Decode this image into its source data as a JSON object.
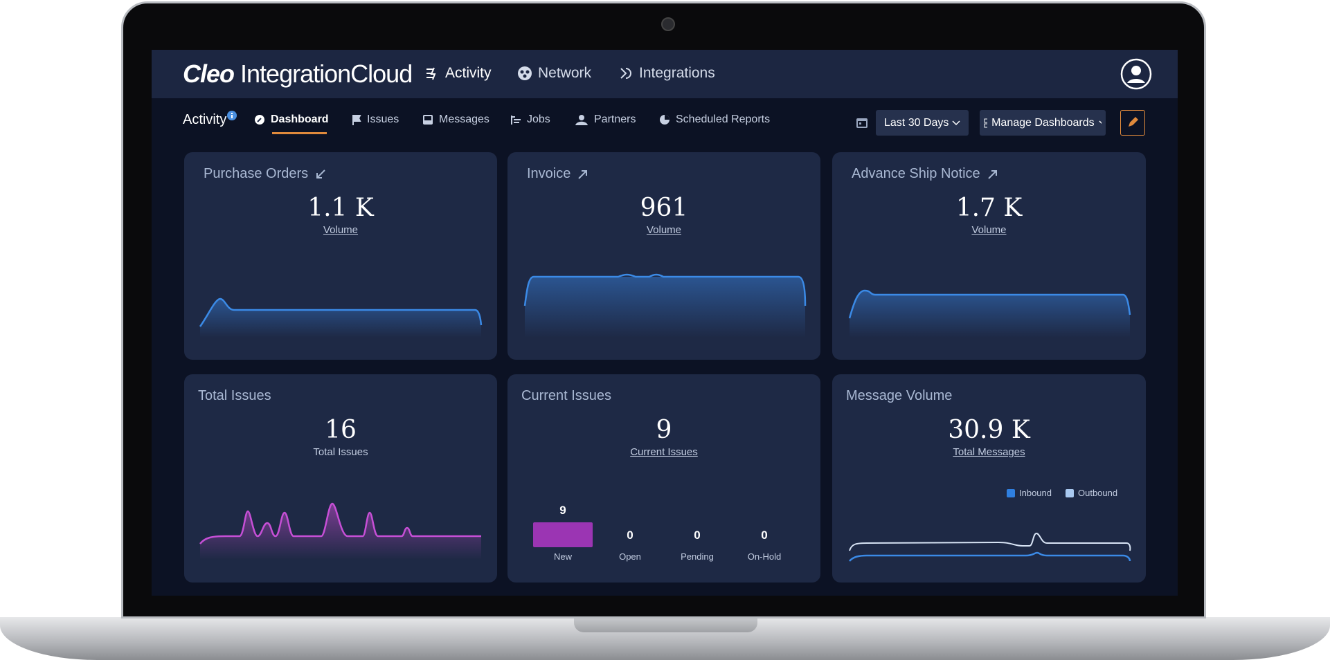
{
  "header": {
    "logo_bold": "Cleo",
    "logo_rest": "IntegrationCloud",
    "nav": [
      "Activity",
      "Network",
      "Integrations"
    ]
  },
  "subnav": {
    "section": "Activity",
    "tabs": [
      "Dashboard",
      "Issues",
      "Messages",
      "Jobs",
      "Partners",
      "Scheduled Reports"
    ],
    "date_range": "Last 30 Days",
    "manage": "Manage Dashboards"
  },
  "cards": [
    {
      "title": "Purchase Orders",
      "value": "1.1 K",
      "label": "Volume"
    },
    {
      "title": "Invoice",
      "value": 961,
      "label": "Volume"
    },
    {
      "title": "Advance Ship Notice",
      "value": "1.7 K",
      "label": "Volume"
    },
    {
      "title": "Total Issues",
      "value": 16,
      "label": "Total Issues"
    },
    {
      "title": "Current Issues",
      "value": 9,
      "label": "Current Issues",
      "chart": {
        "type": "bar",
        "categories": [
          "New",
          "Open",
          "Pending",
          "On-Hold"
        ],
        "values": [
          9,
          0,
          0,
          0
        ],
        "color": "#9b35b3"
      }
    },
    {
      "title": "Message Volume",
      "value": "30.9 K",
      "label": "Total Messages",
      "legend": [
        {
          "name": "Inbound",
          "color": "#2f7fe0"
        },
        {
          "name": "Outbound",
          "color": "#a9c9f0"
        }
      ]
    }
  ]
}
